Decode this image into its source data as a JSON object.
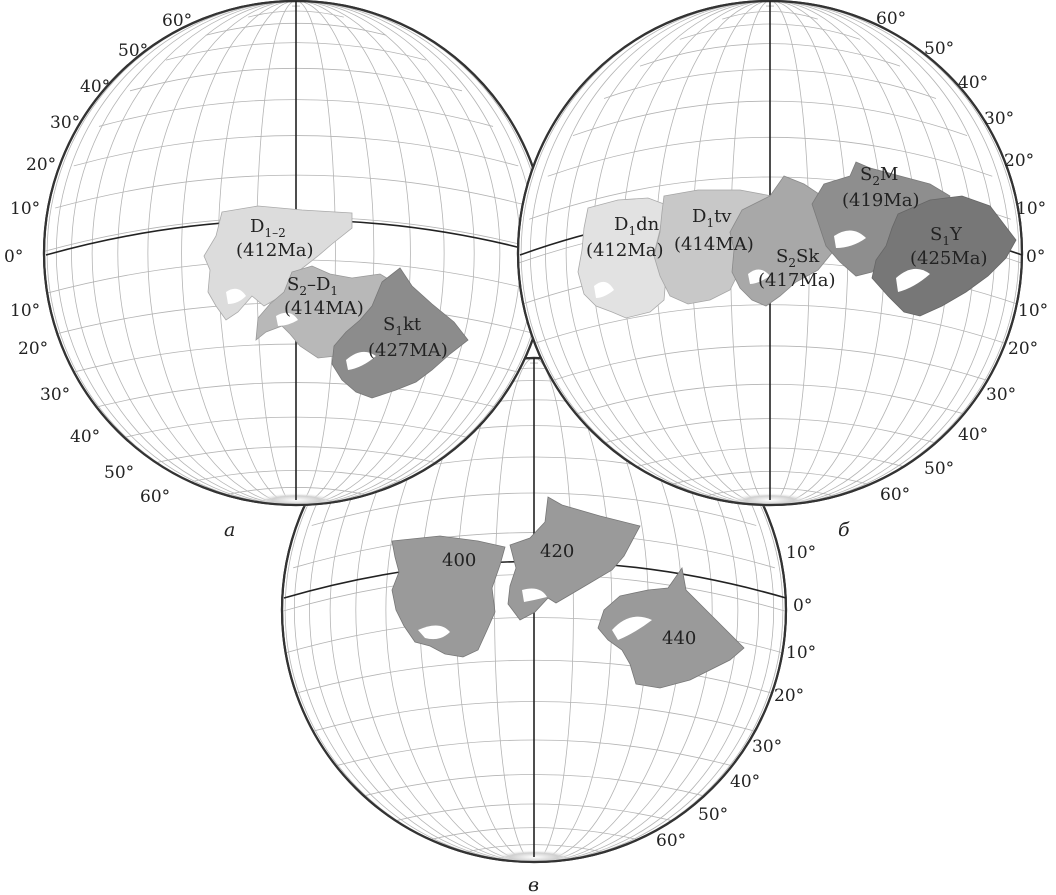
{
  "panels": {
    "a": {
      "label": "a",
      "lat_north": [
        "60°",
        "50°",
        "40°",
        "30°",
        "20°",
        "10°",
        "0°"
      ],
      "lat_south": [
        "10°",
        "20°",
        "30°",
        "40°",
        "50°",
        "60°"
      ],
      "blocks": [
        {
          "name": "D",
          "sub": "1–2",
          "age": "(412Ma)",
          "shade": "#dcdcdc"
        },
        {
          "name": "S",
          "sub": "2",
          "name2": "–D",
          "sub2": "1",
          "age": "(414MA)",
          "shade": "#b8b8b8"
        },
        {
          "name": "S",
          "sub": "1",
          "name2": "kt",
          "age": "(427MA)",
          "shade": "#8c8c8c"
        }
      ]
    },
    "b": {
      "label": "б",
      "lat_north": [
        "60°",
        "50°",
        "40°",
        "30°",
        "20°",
        "10°",
        "0°"
      ],
      "lat_south": [
        "10°",
        "20°",
        "30°",
        "40°",
        "50°",
        "60°"
      ],
      "blocks": [
        {
          "name": "D",
          "sub": "1",
          "name2": "dn",
          "age": "(412Ma)",
          "shade": "#e2e2e2"
        },
        {
          "name": "D",
          "sub": "1",
          "name2": "tv",
          "age": "(414MA)",
          "shade": "#c8c8c8"
        },
        {
          "name": "S",
          "sub": "2",
          "name2": "Sk",
          "age": "(417Ma)",
          "shade": "#a8a8a8"
        },
        {
          "name": "S",
          "sub": "2",
          "name2": "M",
          "age": "(419Ma)",
          "shade": "#8e8e8e"
        },
        {
          "name": "S",
          "sub": "1",
          "name2": "Y",
          "age": "(425Ma)",
          "shade": "#777777"
        }
      ]
    },
    "c": {
      "label": "в",
      "lat_north": [
        "10°",
        "0°"
      ],
      "lat_south": [
        "10°",
        "20°",
        "30°",
        "40°",
        "50°",
        "60°"
      ],
      "blocks": [
        {
          "age": "400",
          "shade": "#9a9a9a"
        },
        {
          "age": "420",
          "shade": "#9a9a9a"
        },
        {
          "age": "440",
          "shade": "#9a9a9a"
        }
      ]
    }
  }
}
